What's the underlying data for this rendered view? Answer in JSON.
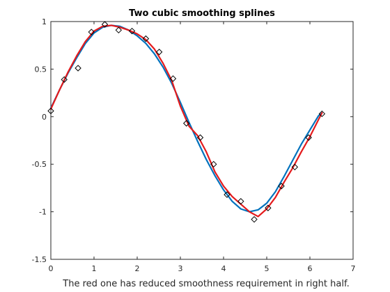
{
  "chart_data": {
    "type": "line",
    "title": "Two cubic smoothing splines",
    "xlabel": "The red one has reduced smoothness requirement in right half.",
    "ylabel": "",
    "xlim": [
      0,
      7
    ],
    "ylim": [
      -1.5,
      1
    ],
    "xticks": [
      0,
      1,
      2,
      3,
      4,
      5,
      6,
      7
    ],
    "yticks": [
      -1.5,
      -1,
      -0.5,
      0,
      0.5,
      1
    ],
    "xtick_labels": [
      "0",
      "1",
      "2",
      "3",
      "4",
      "5",
      "6",
      "7"
    ],
    "ytick_labels": [
      "-1.5",
      "-1",
      "-0.5",
      "0",
      "0.5",
      "1"
    ],
    "grid": false,
    "box": true,
    "series": [
      {
        "kind": "scatter",
        "marker": "diamond",
        "color": "#000000",
        "x": [
          0.0,
          0.31,
          0.63,
          0.94,
          1.25,
          1.57,
          1.88,
          2.2,
          2.51,
          2.83,
          3.14,
          3.46,
          3.77,
          4.08,
          4.4,
          4.71,
          5.03,
          5.34,
          5.65,
          5.97,
          6.28
        ],
        "y": [
          0.06,
          0.39,
          0.51,
          0.89,
          0.97,
          0.91,
          0.9,
          0.82,
          0.68,
          0.4,
          -0.07,
          -0.22,
          -0.5,
          -0.82,
          -0.89,
          -1.08,
          -0.96,
          -0.73,
          -0.53,
          -0.22,
          0.03
        ]
      },
      {
        "kind": "line",
        "color": "#0072bd",
        "x": [
          0.0,
          0.2,
          0.4,
          0.6,
          0.8,
          1.0,
          1.2,
          1.4,
          1.6,
          1.8,
          2.0,
          2.2,
          2.4,
          2.6,
          2.8,
          3.0,
          3.2,
          3.4,
          3.6,
          3.8,
          4.0,
          4.2,
          4.4,
          4.6,
          4.8,
          5.0,
          5.2,
          5.4,
          5.6,
          5.8,
          6.0,
          6.2,
          6.28
        ],
        "y": [
          0.09,
          0.28,
          0.46,
          0.62,
          0.77,
          0.88,
          0.94,
          0.96,
          0.95,
          0.91,
          0.85,
          0.77,
          0.66,
          0.52,
          0.35,
          0.15,
          -0.06,
          -0.26,
          -0.45,
          -0.62,
          -0.77,
          -0.89,
          -0.97,
          -1.0,
          -0.98,
          -0.91,
          -0.79,
          -0.63,
          -0.46,
          -0.29,
          -0.14,
          0.01,
          0.04
        ]
      },
      {
        "kind": "line",
        "color": "#e41a1c",
        "x": [
          0.0,
          0.2,
          0.4,
          0.6,
          0.8,
          1.0,
          1.2,
          1.4,
          1.6,
          1.8,
          2.0,
          2.2,
          2.4,
          2.6,
          2.8,
          3.0,
          3.2,
          3.4,
          3.6,
          3.8,
          4.0,
          4.2,
          4.4,
          4.6,
          4.8,
          5.0,
          5.2,
          5.4,
          5.6,
          5.8,
          6.0,
          6.2,
          6.28
        ],
        "y": [
          0.08,
          0.28,
          0.47,
          0.64,
          0.79,
          0.9,
          0.95,
          0.96,
          0.94,
          0.91,
          0.87,
          0.81,
          0.71,
          0.56,
          0.38,
          0.11,
          -0.1,
          -0.2,
          -0.37,
          -0.58,
          -0.73,
          -0.84,
          -0.92,
          -1.0,
          -1.05,
          -0.97,
          -0.85,
          -0.69,
          -0.54,
          -0.37,
          -0.21,
          -0.03,
          0.04
        ]
      }
    ]
  }
}
